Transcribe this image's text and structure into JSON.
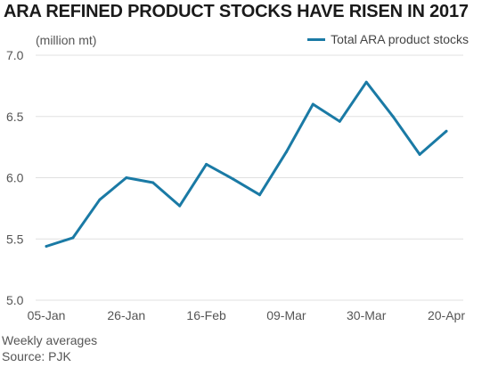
{
  "chart_data": {
    "type": "line",
    "title": "ARA REFINED PRODUCT STOCKS HAVE RISEN IN 2017",
    "unit_label": "(million mt)",
    "legend_position": "top-right",
    "grid": true,
    "ylim": [
      5.0,
      7.0
    ],
    "yticks": [
      "5.0",
      "5.5",
      "6.0",
      "6.5",
      "7.0"
    ],
    "ytick_values": [
      5.0,
      5.5,
      6.0,
      6.5,
      7.0
    ],
    "x_labels": [
      "05-Jan",
      "26-Jan",
      "16-Feb",
      "09-Mar",
      "30-Mar",
      "20-Apr"
    ],
    "x": [
      "05-Jan",
      "12-Jan",
      "19-Jan",
      "26-Jan",
      "02-Feb",
      "09-Feb",
      "16-Feb",
      "23-Feb",
      "02-Mar",
      "09-Mar",
      "16-Mar",
      "23-Mar",
      "30-Mar",
      "06-Apr",
      "13-Apr",
      "20-Apr"
    ],
    "series": [
      {
        "name": "Total ARA product stocks",
        "color": "#1a7aa5",
        "values": [
          5.44,
          5.51,
          5.82,
          6.0,
          5.96,
          5.77,
          6.11,
          5.99,
          5.86,
          6.21,
          6.6,
          6.46,
          6.78,
          6.5,
          6.19,
          6.38
        ]
      }
    ]
  },
  "footer": {
    "note": "Weekly averages",
    "source": "Source: PJK"
  },
  "colors": {
    "line": "#1a7aa5",
    "grid": "#e0e0e0",
    "text": "#555555",
    "title": "#1a1a1a"
  }
}
